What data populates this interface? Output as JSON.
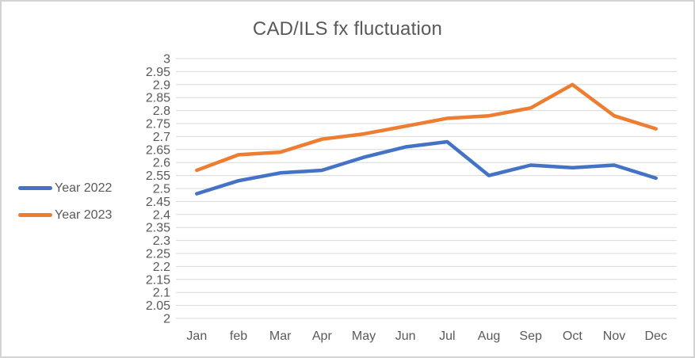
{
  "title": "CAD/ILS fx fluctuation",
  "colors": {
    "title_text": "#595959",
    "axis_text": "#595959",
    "gridline": "#d9d9d9",
    "border": "#d3d3d3",
    "background": "#ffffff",
    "series_2022": "#4472c4",
    "series_2023": "#ed7d31"
  },
  "legend": {
    "position": "left",
    "items": [
      {
        "label": "Year 2022",
        "color": "#4472c4"
      },
      {
        "label": "Year 2023",
        "color": "#ed7d31"
      }
    ]
  },
  "chart_data": {
    "type": "line",
    "title": "CAD/ILS fx fluctuation",
    "categories": [
      "Jan",
      "feb",
      "Mar",
      "Apr",
      "May",
      "Jun",
      "Jul",
      "Aug",
      "Sep",
      "Oct",
      "Nov",
      "Dec"
    ],
    "series": [
      {
        "name": "Year 2022",
        "color": "#4472c4",
        "values": [
          2.48,
          2.53,
          2.56,
          2.57,
          2.62,
          2.66,
          2.68,
          2.55,
          2.59,
          2.58,
          2.59,
          2.54
        ]
      },
      {
        "name": "Year 2023",
        "color": "#ed7d31",
        "values": [
          2.57,
          2.63,
          2.64,
          2.69,
          2.71,
          2.74,
          2.77,
          2.78,
          2.81,
          2.9,
          2.78,
          2.73
        ]
      }
    ],
    "xlabel": "",
    "ylabel": "",
    "ylim": [
      2,
      3
    ],
    "ytick_step": 0.05,
    "ytick_labels": [
      "3",
      "2.95",
      "2.9",
      "2.85",
      "2.8",
      "2.75",
      "2.7",
      "2.65",
      "2.6",
      "2.55",
      "2.5",
      "2.45",
      "2.4",
      "2.35",
      "2.3",
      "2.25",
      "2.2",
      "2.15",
      "2.1",
      "2.05",
      "2"
    ],
    "grid": true,
    "legend_position": "left"
  }
}
